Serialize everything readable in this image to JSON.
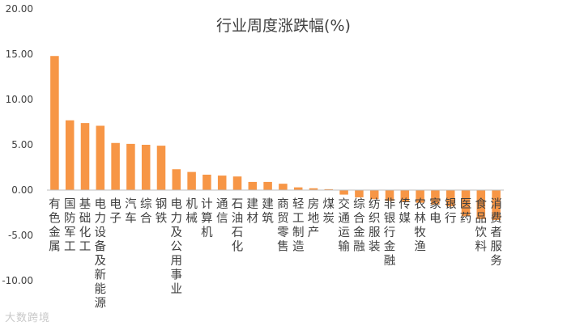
{
  "chart_data": {
    "type": "bar",
    "title": "行业周度涨跌幅(%)",
    "xlabel": "",
    "ylabel": "",
    "ylim": [
      -10,
      20
    ],
    "ytick_labels": [
      "20.00",
      "15.00",
      "10.00",
      "5.00",
      "0.00",
      "-5.00",
      "-10.00"
    ],
    "grid": false,
    "legend": "none",
    "bar_color": "#f79646",
    "categories": [
      "有色金属",
      "国防军工",
      "基础化工",
      "电力设备及新能源",
      "电子",
      "汽车",
      "综合",
      "钢铁",
      "电力及公用事业",
      "机械",
      "计算机",
      "通信",
      "石油石化",
      "建材",
      "建筑",
      "商贸零售",
      "轻工制造",
      "房地产",
      "煤炭",
      "交通运输",
      "综合金融",
      "纺织服装",
      "非银行金融",
      "传媒",
      "农林牧渔",
      "家电",
      "银行",
      "医药",
      "食品饮料",
      "消费者服务"
    ],
    "values": [
      14.8,
      7.7,
      7.4,
      7.1,
      5.2,
      5.1,
      5.0,
      4.9,
      2.3,
      2.0,
      1.7,
      1.6,
      1.5,
      0.9,
      0.9,
      0.7,
      0.3,
      0.2,
      0.1,
      -0.5,
      -0.8,
      -1.0,
      -1.2,
      -1.3,
      -1.4,
      -1.6,
      -1.8,
      -2.9,
      -3.2,
      -3.3
    ]
  },
  "watermark": "大数跨境"
}
